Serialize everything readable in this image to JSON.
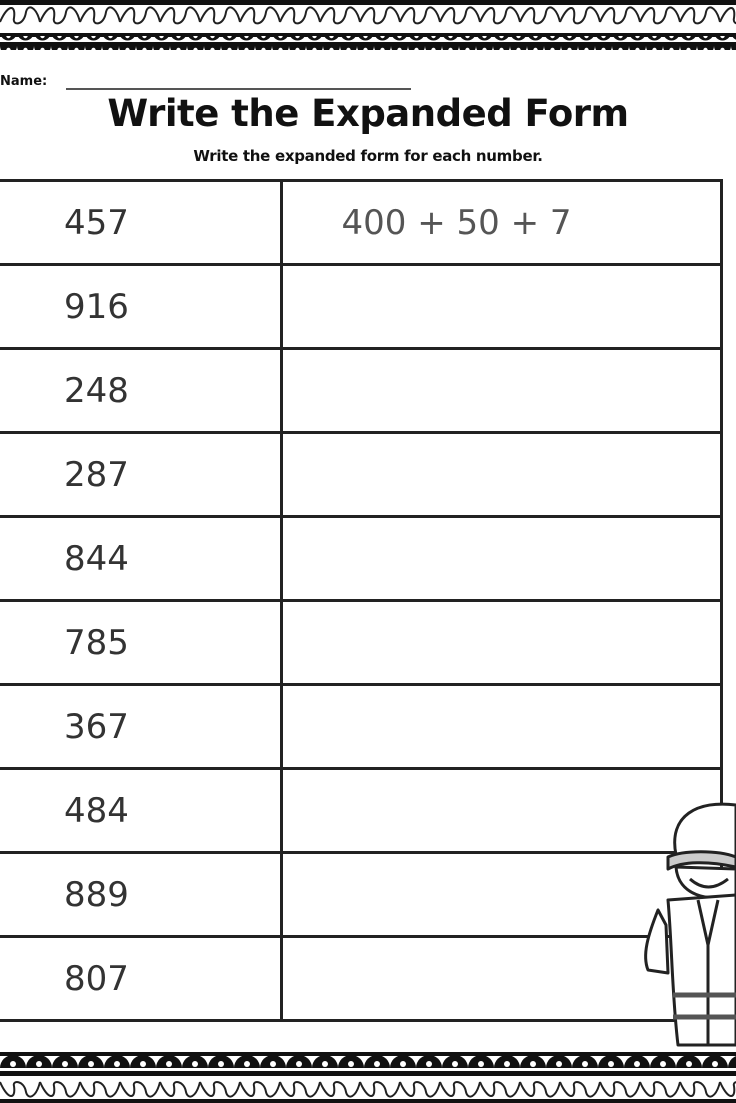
{
  "header": {
    "name_label": "Name:",
    "title": "Write the Expanded Form",
    "instructions": "Write the expanded form for each number."
  },
  "rows": [
    {
      "number": "457",
      "answer": "400 + 50 + 7"
    },
    {
      "number": "916",
      "answer": ""
    },
    {
      "number": "248",
      "answer": ""
    },
    {
      "number": "287",
      "answer": ""
    },
    {
      "number": "844",
      "answer": ""
    },
    {
      "number": "785",
      "answer": ""
    },
    {
      "number": "367",
      "answer": ""
    },
    {
      "number": "484",
      "answer": ""
    },
    {
      "number": "889",
      "answer": ""
    },
    {
      "number": "807",
      "answer": ""
    }
  ],
  "decorations": {
    "border_style": "scalloped-loops",
    "illustration": "boy-in-hat-icon"
  }
}
